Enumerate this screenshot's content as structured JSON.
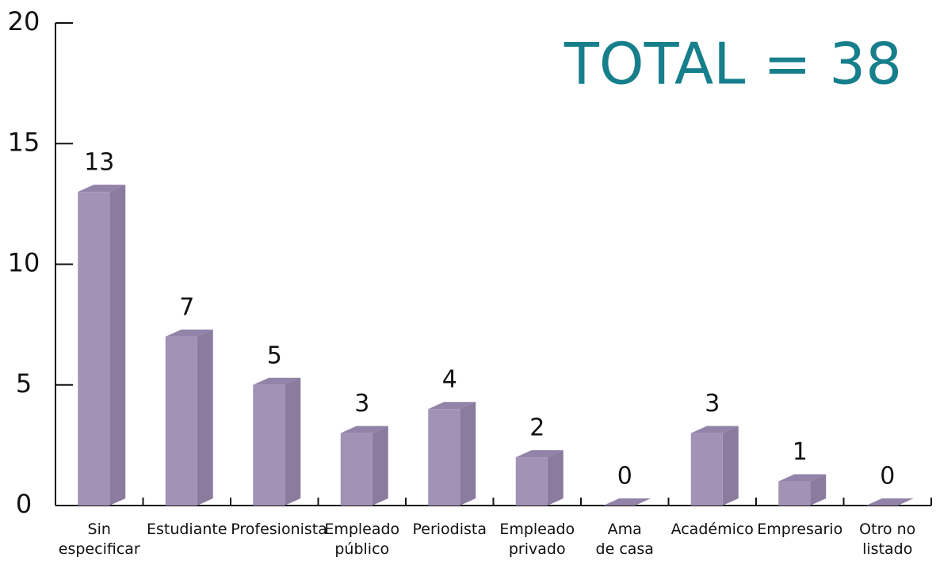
{
  "chart_data": {
    "type": "bar3d",
    "annotation": "TOTAL = 38",
    "categories": [
      "Sin\nespecificar",
      "Estudiante",
      "Profesionista",
      "Empleado\npúblico",
      "Periodista",
      "Empleado\nprivado",
      "Ama\nde casa",
      "Académico",
      "Empresario",
      "Otro no\nlistado"
    ],
    "values": [
      13,
      7,
      5,
      3,
      4,
      2,
      0,
      3,
      1,
      0
    ],
    "color": "#a292b6",
    "ylim": [
      0,
      20
    ],
    "yticks": [
      0,
      5,
      10,
      15,
      20
    ]
  }
}
